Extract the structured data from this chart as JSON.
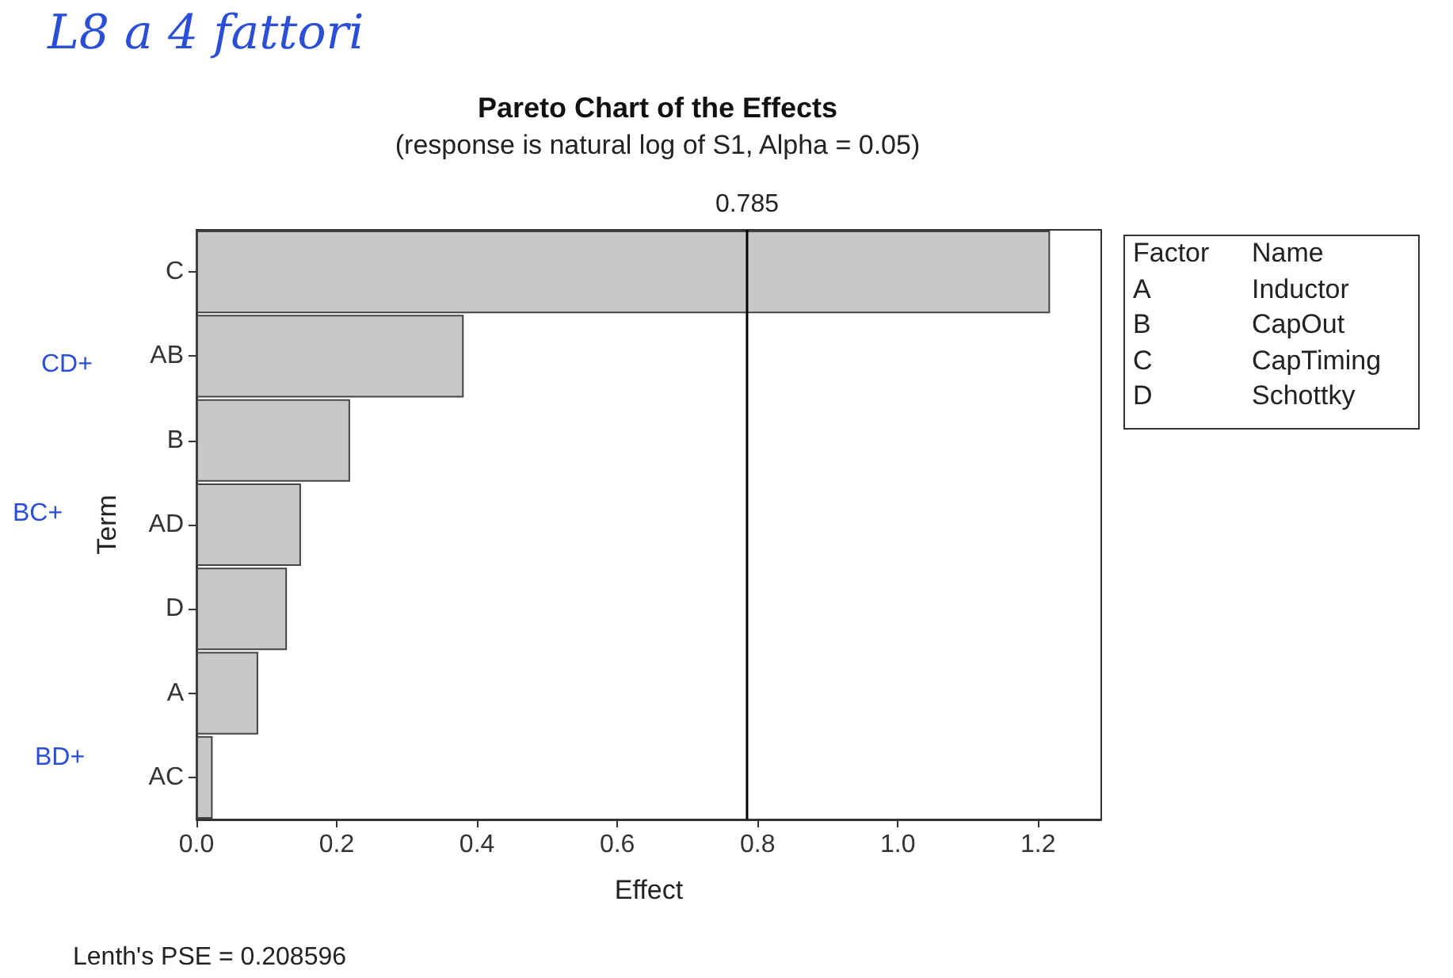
{
  "chart_data": {
    "type": "bar",
    "orientation": "horizontal",
    "title": "Pareto Chart of the Effects",
    "subtitle": "(response is natural log of S1, Alpha = 0.05)",
    "xlabel": "Effect",
    "ylabel": "Term",
    "categories": [
      "C",
      "AB",
      "B",
      "AD",
      "D",
      "A",
      "AC"
    ],
    "values": [
      1.217,
      0.381,
      0.219,
      0.149,
      0.129,
      0.088,
      0.023
    ],
    "color": "#c8c8c8",
    "xlim": [
      0,
      1.29
    ],
    "xticks": [
      {
        "value": 0,
        "label": "0.0"
      },
      {
        "value": 0.2,
        "label": "0.2"
      },
      {
        "value": 0.4,
        "label": "0.4"
      },
      {
        "value": 0.6,
        "label": "0.6"
      },
      {
        "value": 0.8,
        "label": "0.8"
      },
      {
        "value": 1,
        "label": "1.0"
      },
      {
        "value": 1.2,
        "label": "1.2"
      }
    ],
    "ref_lines": [
      {
        "axis": "x",
        "value": 0.785,
        "label": "0.785",
        "color": "#000000"
      }
    ],
    "grid": false,
    "annotations": [
      "L8 a 4 fattori",
      "CD+",
      "BC+",
      "BD+",
      "Factor",
      "Name",
      "A",
      "Inductor",
      "B",
      "CapOut",
      "C",
      "CapTiming",
      "D",
      "Schottky",
      "Lenth's PSE = 0.208596"
    ]
  }
}
